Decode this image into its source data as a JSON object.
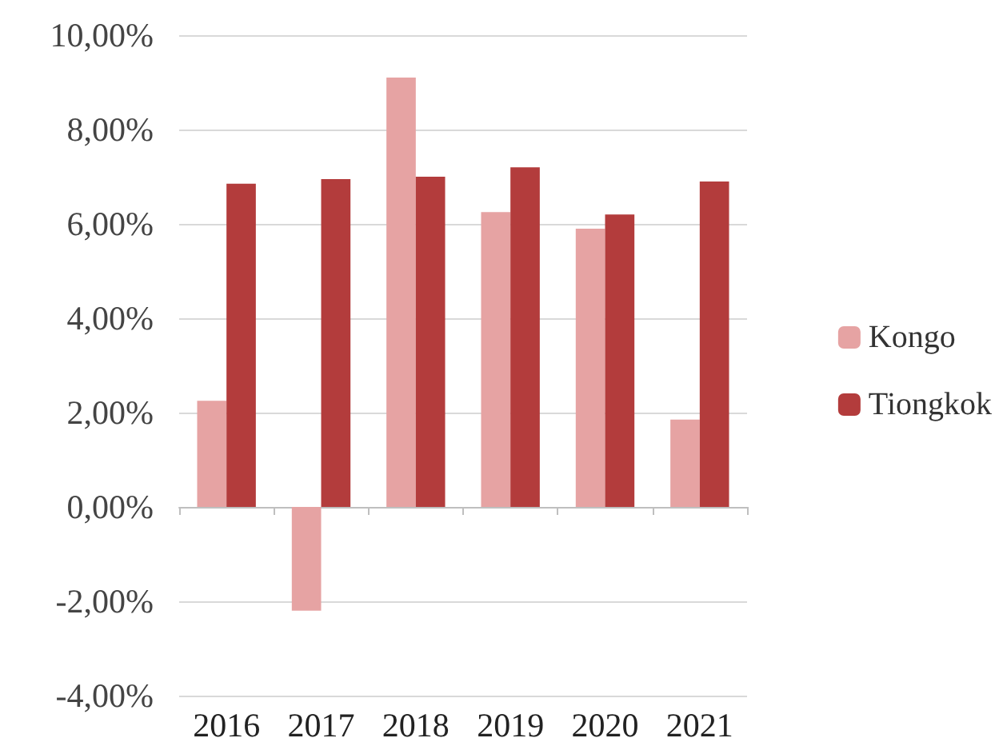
{
  "chart_data": {
    "type": "bar",
    "categories": [
      "2016",
      "2017",
      "2018",
      "2019",
      "2020",
      "2021"
    ],
    "series": [
      {
        "name": "Kongo",
        "color": "#e6a3a3",
        "values": [
          2.25,
          -2.2,
          9.1,
          6.25,
          5.9,
          1.85
        ]
      },
      {
        "name": "Tiongkok",
        "color": "#b33c3c",
        "values": [
          6.85,
          6.95,
          7.0,
          7.2,
          6.2,
          6.9
        ]
      }
    ],
    "ylim": [
      -4,
      10
    ],
    "yticks": [
      {
        "value": -4,
        "label": "-4,00%"
      },
      {
        "value": -2,
        "label": "-2,00%"
      },
      {
        "value": 0,
        "label": "0,00%"
      },
      {
        "value": 2,
        "label": "2,00%"
      },
      {
        "value": 4,
        "label": "4,00%"
      },
      {
        "value": 6,
        "label": "6,00%"
      },
      {
        "value": 8,
        "label": "8,00%"
      },
      {
        "value": 10,
        "label": "10,00%"
      }
    ],
    "grid": "y",
    "legend": "right"
  }
}
